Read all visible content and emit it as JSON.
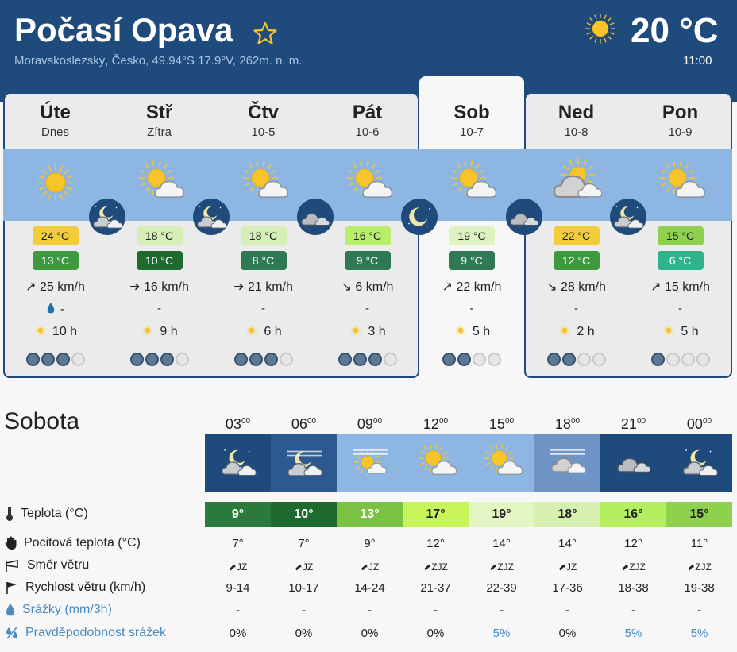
{
  "header": {
    "title": "Počasí Opava",
    "location": "Moravskoslezský, Česko, 49.94°S 17.9°V, 262m. n. m.",
    "current_temp": "20 °C",
    "current_time": "11:00",
    "favorite_icon": "star-icon",
    "current_icon": "sun-icon"
  },
  "days": [
    {
      "name": "Úte",
      "date": "Dnes",
      "icon": "sun-icon",
      "tmax": "24 °C",
      "tmax_color": "#f2cc3a",
      "tmin": "13 °C",
      "tmin_color": "#3f9a3f",
      "wind_arrow": "↗",
      "wind": "25 km/h",
      "rain_icon": "drop-icon",
      "rain": "-",
      "sun": "10 h",
      "confidence": 3
    },
    {
      "name": "Stř",
      "date": "Zítra",
      "icon": "sun-cloud-icon",
      "tmax": "18 °C",
      "tmax_color": "#d6efb8",
      "tmin": "10 °C",
      "tmin_color": "#1f6a2e",
      "wind_arrow": "➔",
      "wind": "16 km/h",
      "rain": "-",
      "sun": "9 h",
      "confidence": 3
    },
    {
      "name": "Čtv",
      "date": "10-5",
      "icon": "sun-cloud-icon",
      "tmax": "18 °C",
      "tmax_color": "#d6efb8",
      "tmin": "8 °C",
      "tmin_color": "#2f7a55",
      "wind_arrow": "➔",
      "wind": "21 km/h",
      "rain": "-",
      "sun": "6 h",
      "confidence": 3
    },
    {
      "name": "Pát",
      "date": "10-6",
      "icon": "sun-cloud-icon",
      "tmax": "16 °C",
      "tmax_color": "#b8ee6a",
      "tmin": "9 °C",
      "tmin_color": "#2f7a55",
      "wind_arrow": "↘",
      "wind": "6 km/h",
      "rain": "-",
      "sun": "3 h",
      "confidence": 3
    },
    {
      "name": "Sob",
      "date": "10-7",
      "icon": "sun-cloud-icon",
      "tmax": "19 °C",
      "tmax_color": "#dff2c2",
      "tmin": "9 °C",
      "tmin_color": "#2f7a55",
      "wind_arrow": "↗",
      "wind": "22 km/h",
      "rain": "-",
      "sun": "5 h",
      "confidence": 2
    },
    {
      "name": "Ned",
      "date": "10-8",
      "icon": "cloud-sun-icon",
      "tmax": "22 °C",
      "tmax_color": "#f2cc3a",
      "tmin": "12 °C",
      "tmin_color": "#3f9a3f",
      "wind_arrow": "↘",
      "wind": "28 km/h",
      "rain": "-",
      "sun": "2 h",
      "confidence": 2
    },
    {
      "name": "Pon",
      "date": "10-9",
      "icon": "sun-cloud-icon",
      "tmax": "15 °C",
      "tmax_color": "#8fd14f",
      "tmin": "6 °C",
      "tmin_color": "#2fb38a",
      "wind_arrow": "↗",
      "wind": "15 km/h",
      "rain": "-",
      "sun": "5 h",
      "confidence": 1
    }
  ],
  "nights": [
    "moon-cloud-icon",
    "moon-cloud-icon",
    "cloud-night-icon",
    "moon-icon",
    "cloud-night-icon",
    "moon-cloud-icon"
  ],
  "detail": {
    "day_title": "Sobota",
    "hours": [
      {
        "h": "03",
        "icon": "moon-cloud-icon",
        "temp": "9°",
        "temp_color": "#2c7a3b",
        "feel": "7°",
        "dir_arrow": "⬈",
        "dir": "JZ",
        "speed": "9-14",
        "rain": "-",
        "prob": "0%"
      },
      {
        "h": "06",
        "icon": "fog-moon-icon",
        "temp": "10°",
        "temp_color": "#1f6a2e",
        "feel": "7°",
        "dir_arrow": "⬈",
        "dir": "JZ",
        "speed": "10-17",
        "rain": "-",
        "prob": "0%"
      },
      {
        "h": "09",
        "icon": "fog-sun-icon",
        "temp": "13°",
        "temp_color": "#7cc242",
        "feel": "9°",
        "dir_arrow": "⬈",
        "dir": "JZ",
        "speed": "14-24",
        "rain": "-",
        "prob": "0%"
      },
      {
        "h": "12",
        "icon": "sun-cloud-icon",
        "temp": "17°",
        "temp_color": "#c8f55a",
        "feel": "12°",
        "dir_arrow": "⬈",
        "dir": "ZJZ",
        "speed": "21-37",
        "rain": "-",
        "prob": "0%"
      },
      {
        "h": "15",
        "icon": "sun-cloud-icon",
        "temp": "19°",
        "temp_color": "#e2f5c2",
        "feel": "14°",
        "dir_arrow": "⬈",
        "dir": "ZJZ",
        "speed": "22-39",
        "rain": "-",
        "prob": "5%"
      },
      {
        "h": "18",
        "icon": "fog-cloud-icon",
        "temp": "18°",
        "temp_color": "#d6f0b2",
        "feel": "14°",
        "dir_arrow": "⬈",
        "dir": "JZ",
        "speed": "17-36",
        "rain": "-",
        "prob": "0%"
      },
      {
        "h": "21",
        "icon": "cloud-night-icon",
        "temp": "16°",
        "temp_color": "#b5ee5e",
        "feel": "12°",
        "dir_arrow": "⬈",
        "dir": "ZJZ",
        "speed": "18-38",
        "rain": "-",
        "prob": "5%"
      },
      {
        "h": "00",
        "icon": "moon-cloud-icon",
        "temp": "15°",
        "temp_color": "#8fd14f",
        "feel": "11°",
        "dir_arrow": "⬈",
        "dir": "ZJZ",
        "speed": "19-38",
        "rain": "-",
        "prob": "5%"
      }
    ],
    "hour_suffix": "00",
    "labels": {
      "temp": "Teplota (°C)",
      "feel": "Pocitová teplota (°C)",
      "dir": "Směr větru",
      "speed": "Rychlost větru (km/h)",
      "rain": "Srážky (mm/3h)",
      "prob": "Pravděpodobnost srážek"
    },
    "row_icons": {
      "temp": "thermometer-icon",
      "feel": "hand-icon",
      "dir": "wind-sock-icon",
      "speed": "flag-icon",
      "rain": "drop-icon",
      "prob": "percent-drop-icon"
    }
  },
  "colors": {
    "header": "#1f4a7c",
    "sky": "#8db6e3",
    "sun": "#f7c52b"
  }
}
